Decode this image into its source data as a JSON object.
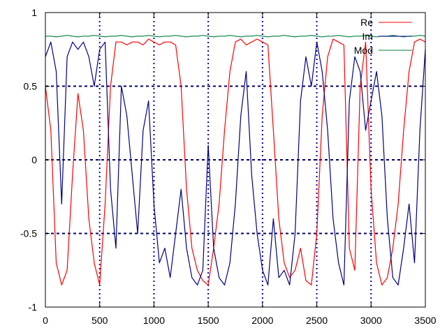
{
  "chart_data": {
    "type": "line",
    "title": "",
    "xlabel": "",
    "ylabel": "",
    "xlim": [
      0,
      3500
    ],
    "ylim": [
      -1,
      1
    ],
    "grid": true,
    "legend_position": "top-right",
    "xticks": [
      0,
      500,
      1000,
      1500,
      2000,
      2500,
      3000,
      3500
    ],
    "xtick_labels": [
      "0",
      "500",
      "1000",
      "1500",
      "2000",
      "2500",
      "3000",
      "3500"
    ],
    "yticks": [
      -1,
      -0.5,
      0,
      0.5,
      1
    ],
    "ytick_labels": [
      "-1",
      "-0.5",
      "0",
      "0.5",
      "1"
    ],
    "colors": {
      "axis": "#000000",
      "grid_x": "#0000aa",
      "grid_y": "#000066"
    },
    "series": [
      {
        "name": "Re",
        "color": "#ff0000",
        "x": [
          0,
          50,
          100,
          150,
          200,
          250,
          300,
          350,
          400,
          450,
          500,
          550,
          600,
          650,
          700,
          750,
          800,
          850,
          900,
          950,
          1000,
          1050,
          1100,
          1150,
          1200,
          1250,
          1300,
          1350,
          1400,
          1450,
          1500,
          1550,
          1600,
          1650,
          1700,
          1750,
          1800,
          1850,
          1900,
          1950,
          2000,
          2050,
          2100,
          2150,
          2200,
          2250,
          2300,
          2350,
          2400,
          2450,
          2500,
          2550,
          2600,
          2650,
          2700,
          2750,
          2800,
          2850,
          2900,
          2950,
          3000,
          3050,
          3100,
          3150,
          3200,
          3250,
          3300,
          3350,
          3400,
          3450,
          3500
        ],
        "values": [
          0.5,
          0.2,
          -0.7,
          -0.85,
          -0.75,
          -0.1,
          0.45,
          0.2,
          -0.4,
          -0.7,
          -0.85,
          -0.3,
          0.5,
          0.8,
          0.8,
          0.78,
          0.8,
          0.8,
          0.78,
          0.82,
          0.8,
          0.78,
          0.8,
          0.8,
          0.78,
          0.5,
          -0.2,
          -0.6,
          -0.75,
          -0.82,
          -0.85,
          -0.6,
          -0.3,
          0.2,
          0.6,
          0.8,
          0.82,
          0.78,
          0.8,
          0.82,
          0.8,
          0.78,
          0.2,
          -0.4,
          -0.7,
          -0.8,
          -0.75,
          -0.6,
          -0.82,
          -0.85,
          -0.5,
          0.3,
          0.7,
          0.82,
          0.8,
          0.78,
          -0.6,
          -0.75,
          0.5,
          0.8,
          -0.2,
          -0.7,
          -0.85,
          -0.8,
          -0.6,
          -0.3,
          0.2,
          0.6,
          0.8,
          0.82,
          0.8
        ]
      },
      {
        "name": "Im",
        "color": "#000080",
        "x": [
          0,
          50,
          100,
          150,
          200,
          250,
          300,
          350,
          400,
          450,
          500,
          550,
          600,
          650,
          700,
          750,
          800,
          850,
          900,
          950,
          1000,
          1050,
          1100,
          1150,
          1200,
          1250,
          1300,
          1350,
          1400,
          1450,
          1500,
          1550,
          1600,
          1650,
          1700,
          1750,
          1800,
          1850,
          1900,
          1950,
          2000,
          2050,
          2100,
          2150,
          2200,
          2250,
          2300,
          2350,
          2400,
          2450,
          2500,
          2550,
          2600,
          2650,
          2700,
          2750,
          2800,
          2850,
          2900,
          2950,
          3000,
          3050,
          3100,
          3150,
          3200,
          3250,
          3300,
          3350,
          3400,
          3450,
          3500
        ],
        "values": [
          0.7,
          0.8,
          0.6,
          -0.3,
          0.7,
          0.8,
          0.75,
          0.8,
          0.7,
          0.5,
          0.75,
          0.8,
          -0.2,
          -0.6,
          0.5,
          0.3,
          -0.1,
          -0.5,
          0.2,
          0.4,
          -0.3,
          -0.7,
          -0.6,
          -0.8,
          -0.5,
          -0.2,
          -0.6,
          -0.8,
          -0.85,
          -0.75,
          0.1,
          -0.6,
          -0.8,
          -0.85,
          -0.7,
          -0.3,
          0.3,
          0.6,
          -0.1,
          -0.5,
          -0.75,
          -0.85,
          -0.4,
          -0.8,
          -0.75,
          -0.85,
          -0.5,
          0.4,
          0.7,
          0.5,
          0.8,
          0.6,
          0.2,
          -0.4,
          -0.7,
          -0.85,
          0.4,
          0.7,
          0.6,
          0.2,
          0.4,
          0.6,
          0.3,
          -0.4,
          -0.8,
          -0.85,
          -0.6,
          -0.3,
          -0.7,
          0.2,
          0.75
        ]
      },
      {
        "name": "Mod",
        "color": "#008040",
        "x": [
          0,
          50,
          100,
          150,
          200,
          250,
          300,
          350,
          400,
          450,
          500,
          550,
          600,
          650,
          700,
          750,
          800,
          850,
          900,
          950,
          1000,
          1050,
          1100,
          1150,
          1200,
          1250,
          1300,
          1350,
          1400,
          1450,
          1500,
          1550,
          1600,
          1650,
          1700,
          1750,
          1800,
          1850,
          1900,
          1950,
          2000,
          2050,
          2100,
          2150,
          2200,
          2250,
          2300,
          2350,
          2400,
          2450,
          2500,
          2550,
          2600,
          2650,
          2700,
          2750,
          2800,
          2850,
          2900,
          2950,
          3000,
          3050,
          3100,
          3150,
          3200,
          3250,
          3300,
          3350,
          3400,
          3450,
          3500
        ],
        "values": [
          0.84,
          0.84,
          0.835,
          0.84,
          0.845,
          0.84,
          0.835,
          0.84,
          0.84,
          0.845,
          0.84,
          0.835,
          0.84,
          0.84,
          0.845,
          0.84,
          0.835,
          0.84,
          0.84,
          0.845,
          0.84,
          0.835,
          0.84,
          0.84,
          0.845,
          0.84,
          0.835,
          0.84,
          0.84,
          0.845,
          0.84,
          0.835,
          0.84,
          0.84,
          0.845,
          0.84,
          0.835,
          0.84,
          0.84,
          0.845,
          0.84,
          0.835,
          0.84,
          0.84,
          0.845,
          0.84,
          0.835,
          0.84,
          0.84,
          0.845,
          0.84,
          0.835,
          0.84,
          0.84,
          0.845,
          0.84,
          0.835,
          0.84,
          0.84,
          0.845,
          0.84,
          0.835,
          0.84,
          0.84,
          0.845,
          0.84,
          0.835,
          0.84,
          0.84,
          0.845,
          0.84
        ]
      }
    ]
  }
}
